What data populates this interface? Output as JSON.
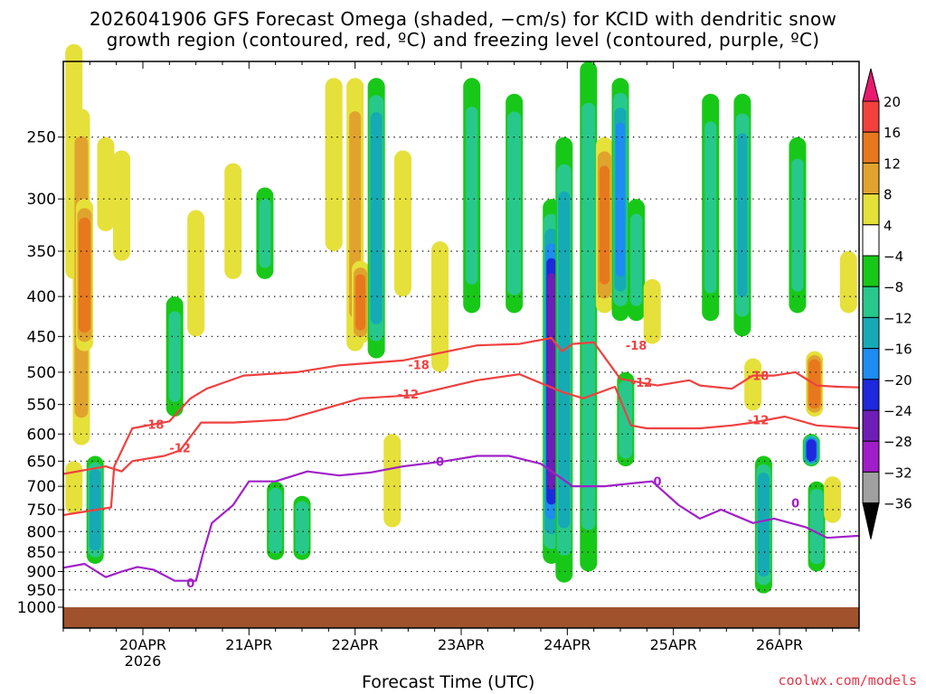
{
  "title": {
    "line1": "2026041906 GFS Forecast Omega (shaded, −cm/s) for KCID with dendritic snow",
    "line2": "growth region (contoured, red, ºC) and freezing level (contoured, purple, ºC)"
  },
  "credit": "coolwx.com/models",
  "chart_data": {
    "type": "heatmap",
    "title": "2026041906 GFS Forecast Omega (shaded, −cm/s) for KCID with dendritic snow growth region (contoured, red, ºC) and freezing level (contoured, purple, ºC)",
    "xlabel": "Forecast Time (UTC)",
    "ylabel": "",
    "x_ticks": [
      {
        "t": 0.75,
        "label": "20APR",
        "sublabel": "2026"
      },
      {
        "t": 1.75,
        "label": "21APR"
      },
      {
        "t": 2.75,
        "label": "22APR"
      },
      {
        "t": 3.75,
        "label": "23APR"
      },
      {
        "t": 4.75,
        "label": "24APR"
      },
      {
        "t": 5.75,
        "label": "25APR"
      },
      {
        "t": 6.75,
        "label": "26APR"
      }
    ],
    "xlim": [
      0,
      7.5
    ],
    "y_ticks": [
      250,
      300,
      350,
      400,
      450,
      500,
      550,
      600,
      650,
      700,
      750,
      800,
      850,
      900,
      950,
      1000
    ],
    "ylim": [
      200,
      1000
    ],
    "colorbar": {
      "labels": [
        "20",
        "16",
        "12",
        "8",
        "4",
        "−4",
        "−8",
        "−12",
        "−16",
        "−20",
        "−24",
        "−28",
        "−32",
        "−36"
      ],
      "colors": [
        "#f01e5a",
        "#f2413c",
        "#e8781e",
        "#e0a42e",
        "#e6e03a",
        "#ffffff",
        "#18c818",
        "#28c88c",
        "#16aab4",
        "#1e8cf0",
        "#1e28dc",
        "#6e1eb4",
        "#a01ec8",
        "#a0a0a0",
        "#000000"
      ]
    },
    "omega_blobs": [
      {
        "t": 0.1,
        "p0": 190,
        "p1": 380,
        "v": 5
      },
      {
        "t": 0.17,
        "p0": 230,
        "p1": 620,
        "v": 10
      },
      {
        "t": 0.2,
        "p0": 300,
        "p1": 470,
        "v": 14
      },
      {
        "t": 0.4,
        "p0": 250,
        "p1": 330,
        "v": 5
      },
      {
        "t": 0.55,
        "p0": 260,
        "p1": 360,
        "v": 5
      },
      {
        "t": 0.3,
        "p0": 640,
        "p1": 880,
        "v": -14
      },
      {
        "t": 0.1,
        "p0": 650,
        "p1": 760,
        "v": 6
      },
      {
        "t": 1.05,
        "p0": 400,
        "p1": 570,
        "v": -8
      },
      {
        "t": 1.25,
        "p0": 310,
        "p1": 450,
        "v": 5
      },
      {
        "t": 1.6,
        "p0": 270,
        "p1": 380,
        "v": 5
      },
      {
        "t": 1.9,
        "p0": 290,
        "p1": 380,
        "v": -8
      },
      {
        "t": 2.0,
        "p0": 690,
        "p1": 870,
        "v": -10
      },
      {
        "t": 2.25,
        "p0": 720,
        "p1": 870,
        "v": -9
      },
      {
        "t": 2.55,
        "p0": 210,
        "p1": 350,
        "v": 5
      },
      {
        "t": 2.75,
        "p0": 210,
        "p1": 470,
        "v": 8
      },
      {
        "t": 2.8,
        "p0": 360,
        "p1": 460,
        "v": 12
      },
      {
        "t": 2.95,
        "p0": 210,
        "p1": 480,
        "v": -14
      },
      {
        "t": 3.2,
        "p0": 260,
        "p1": 400,
        "v": 5
      },
      {
        "t": 3.1,
        "p0": 600,
        "p1": 790,
        "v": 6
      },
      {
        "t": 3.55,
        "p0": 340,
        "p1": 500,
        "v": 5
      },
      {
        "t": 3.85,
        "p0": 210,
        "p1": 420,
        "v": -8
      },
      {
        "t": 4.25,
        "p0": 220,
        "p1": 420,
        "v": -9
      },
      {
        "t": 4.6,
        "p0": 300,
        "p1": 880,
        "v": -24
      },
      {
        "t": 4.72,
        "p0": 250,
        "p1": 930,
        "v": -14
      },
      {
        "t": 4.95,
        "p0": 200,
        "p1": 900,
        "v": -11
      },
      {
        "t": 5.1,
        "p0": 250,
        "p1": 420,
        "v": 12
      },
      {
        "t": 5.25,
        "p0": 210,
        "p1": 430,
        "v": -16
      },
      {
        "t": 5.4,
        "p0": 300,
        "p1": 430,
        "v": -8
      },
      {
        "t": 5.3,
        "p0": 500,
        "p1": 660,
        "v": -10
      },
      {
        "t": 5.55,
        "p0": 380,
        "p1": 460,
        "v": 6
      },
      {
        "t": 6.1,
        "p0": 220,
        "p1": 430,
        "v": -8
      },
      {
        "t": 6.4,
        "p0": 220,
        "p1": 450,
        "v": -12
      },
      {
        "t": 6.5,
        "p0": 480,
        "p1": 560,
        "v": 5
      },
      {
        "t": 6.6,
        "p0": 640,
        "p1": 960,
        "v": -14
      },
      {
        "t": 6.92,
        "p0": 250,
        "p1": 420,
        "v": -8
      },
      {
        "t": 7.05,
        "p0": 600,
        "p1": 660,
        "v": -22
      },
      {
        "t": 7.08,
        "p0": 470,
        "p1": 570,
        "v": 14
      },
      {
        "t": 7.1,
        "p0": 690,
        "p1": 900,
        "v": -10
      },
      {
        "t": 7.4,
        "p0": 350,
        "p1": 420,
        "v": 7
      },
      {
        "t": 7.25,
        "p0": 680,
        "p1": 780,
        "v": 6
      }
    ],
    "contours": [
      {
        "name": "-18",
        "color": "#f04040",
        "t": [
          0.0,
          0.45,
          0.48,
          0.65,
          1.0,
          1.2,
          1.35,
          1.7,
          2.2,
          2.6,
          3.2,
          3.9,
          4.3,
          4.6,
          4.7,
          4.8,
          5.0,
          5.25,
          5.6,
          5.9,
          6.0,
          6.3,
          6.5,
          6.7,
          6.9,
          7.1,
          7.3,
          7.5
        ],
        "p": [
          762,
          745,
          660,
          590,
          578,
          540,
          525,
          505,
          500,
          490,
          483,
          462,
          460,
          452,
          470,
          460,
          458,
          510,
          520,
          512,
          520,
          525,
          505,
          505,
          500,
          520,
          522,
          523
        ]
      },
      {
        "name": "-12",
        "color": "#f04040",
        "t": [
          0.0,
          0.4,
          0.55,
          0.65,
          0.95,
          1.1,
          1.3,
          1.6,
          2.1,
          2.4,
          2.8,
          3.3,
          3.9,
          4.3,
          4.7,
          4.9,
          5.2,
          5.35,
          5.5,
          6.0,
          6.3,
          6.5,
          6.8,
          7.1,
          7.5
        ],
        "p": [
          675,
          660,
          670,
          650,
          640,
          630,
          580,
          580,
          575,
          560,
          540,
          535,
          512,
          503,
          530,
          540,
          522,
          585,
          590,
          590,
          585,
          580,
          570,
          585,
          590
        ]
      },
      {
        "name": "0",
        "color": "#a020c8",
        "t": [
          0.0,
          0.2,
          0.4,
          0.55,
          0.7,
          0.85,
          1.05,
          1.25,
          1.32,
          1.4,
          1.6,
          1.75,
          2.0,
          2.3,
          2.6,
          2.9,
          3.2,
          3.6,
          3.9,
          4.2,
          4.5,
          4.8,
          5.1,
          5.4,
          5.55,
          5.8,
          6.0,
          6.2,
          6.5,
          6.7,
          7.0,
          7.2,
          7.5
        ],
        "p": [
          890,
          880,
          915,
          900,
          888,
          895,
          925,
          925,
          850,
          780,
          740,
          690,
          690,
          670,
          678,
          672,
          660,
          650,
          640,
          640,
          655,
          700,
          700,
          693,
          690,
          740,
          770,
          750,
          780,
          770,
          790,
          815,
          810
        ]
      }
    ],
    "contour_labels": [
      {
        "text": "-18",
        "t": 0.85,
        "p": 583
      },
      {
        "text": "-18",
        "t": 3.35,
        "p": 489
      },
      {
        "text": "-18",
        "t": 5.4,
        "p": 462
      },
      {
        "text": "-18",
        "t": 6.55,
        "p": 505
      },
      {
        "text": "-12",
        "t": 1.1,
        "p": 625
      },
      {
        "text": "-12",
        "t": 3.25,
        "p": 533
      },
      {
        "text": "-12",
        "t": 5.45,
        "p": 515
      },
      {
        "text": "-12",
        "t": 6.55,
        "p": 575
      },
      {
        "text": "0",
        "t": 1.2,
        "p": 930
      },
      {
        "text": "0",
        "t": 3.55,
        "p": 650
      },
      {
        "text": "0",
        "t": 5.6,
        "p": 690
      },
      {
        "text": "0",
        "t": 6.9,
        "p": 735
      }
    ]
  }
}
